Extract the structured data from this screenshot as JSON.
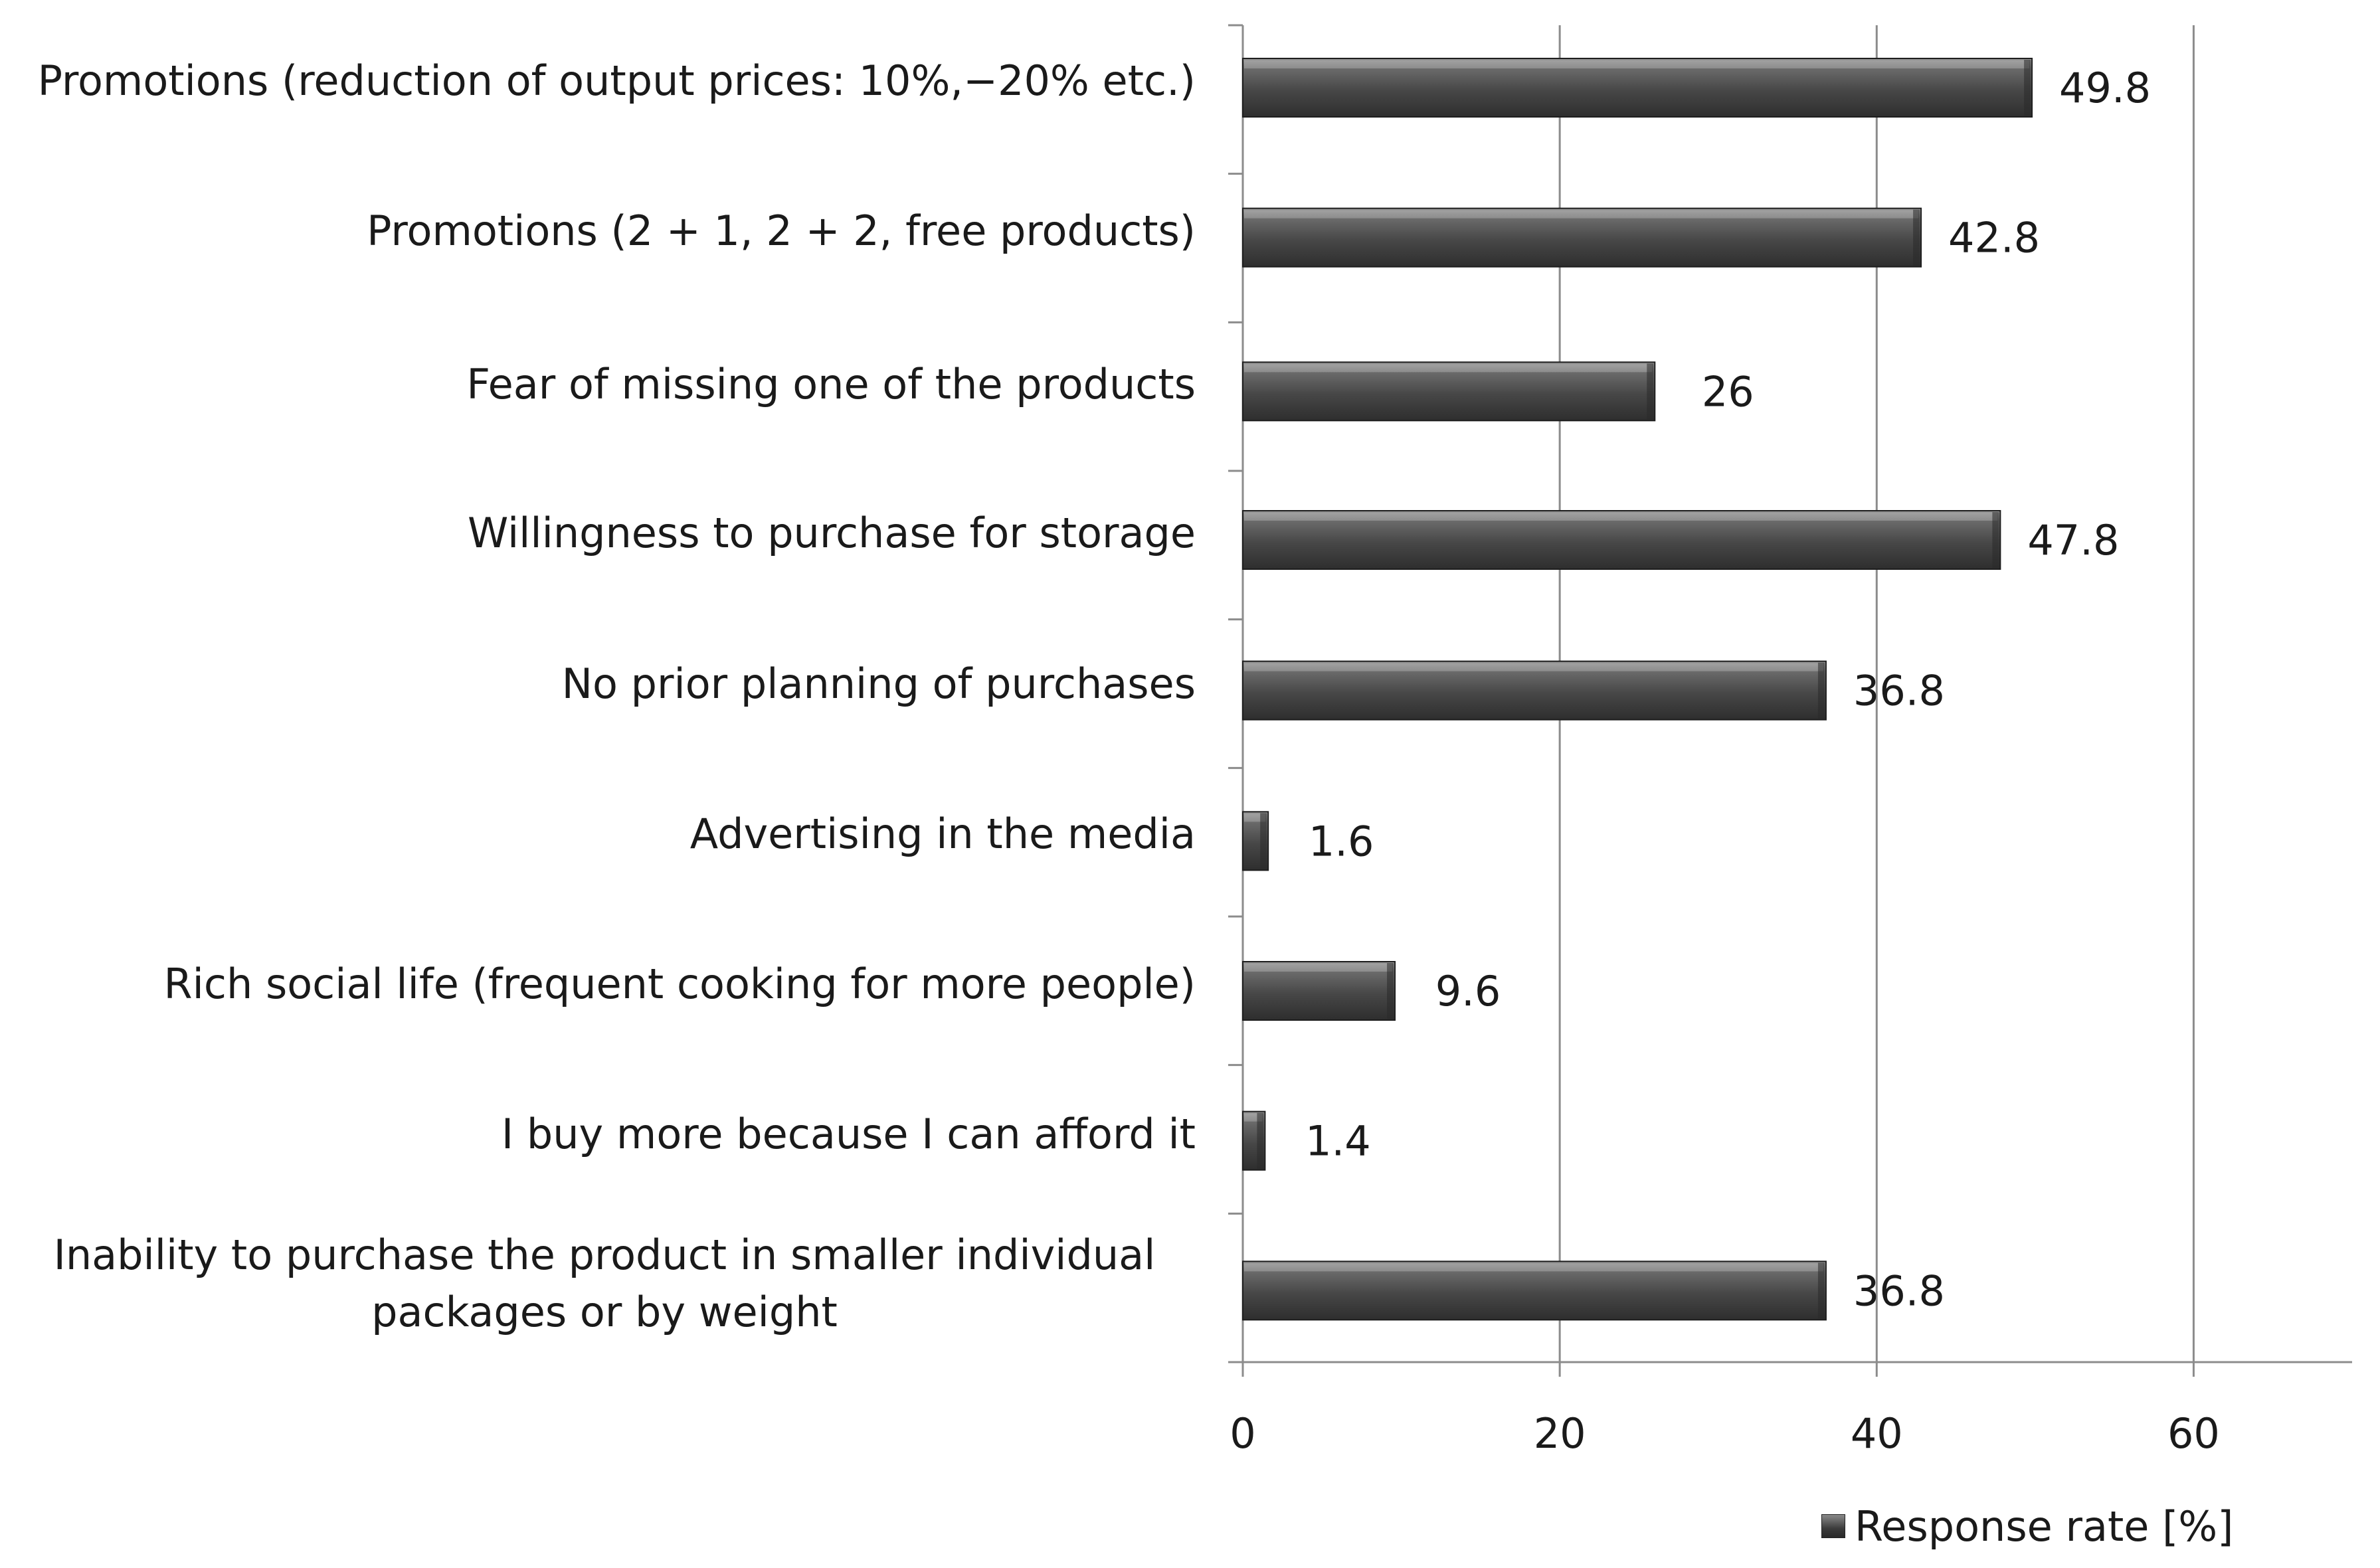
{
  "chart_data": {
    "type": "bar",
    "orientation": "horizontal",
    "title": "",
    "xlabel": "",
    "ylabel": "",
    "xlim": [
      0,
      70
    ],
    "x_ticks": [
      0,
      20,
      40,
      60
    ],
    "x_tick_labels": [
      "0",
      "20",
      "40",
      "60"
    ],
    "grid": "vertical major gridlines",
    "legend_position": "bottom-right",
    "categories": [
      "Promotions (reduction of output prices: 10%,−20% etc.)",
      "Promotions (2 + 1, 2 + 2, free products)",
      "Fear of missing one of the products",
      "Willingness to purchase for storage",
      "No prior planning of purchases",
      "Advertising in the media",
      "Rich social life (frequent cooking for more people)",
      "I buy more because I can afford it",
      "Inability to purchase the product in smaller individual packages or by weight"
    ],
    "series": [
      {
        "name": "Response rate [%]",
        "values": [
          49.8,
          42.8,
          26,
          47.8,
          36.8,
          1.6,
          9.6,
          1.4,
          36.8
        ],
        "value_labels": [
          "49.8",
          "42.8",
          "26",
          "47.8",
          "36.8",
          "1.6",
          "9.6",
          "1.4",
          "36.8"
        ],
        "color": "#4a4a4a"
      }
    ]
  }
}
